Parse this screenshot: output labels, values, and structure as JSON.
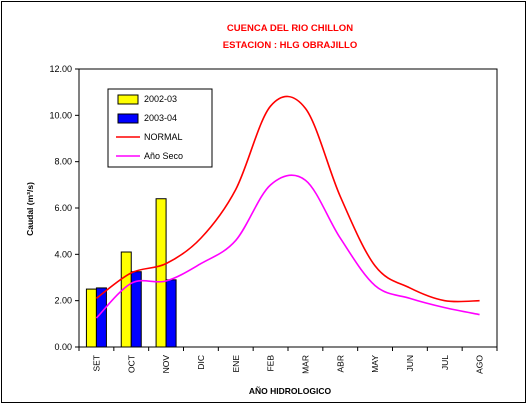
{
  "chart_data": {
    "type": "bar",
    "title": "CUENCA DEL RIO CHILLON",
    "subtitle": "ESTACION : HLG OBRAJILLO",
    "xlabel": "AÑO HIDROLOGICO",
    "ylabel": "Caudal (m³/s)",
    "ylim": [
      0,
      12
    ],
    "yticks": [
      "0.00",
      "2.00",
      "4.00",
      "6.00",
      "8.00",
      "10.00",
      "12.00"
    ],
    "categories": [
      "SET",
      "OCT",
      "NOV",
      "DIC",
      "ENE",
      "FEB",
      "MAR",
      "ABR",
      "MAY",
      "JUN",
      "JUL",
      "AGO"
    ],
    "legend_position": "top-left",
    "grid": false,
    "series": [
      {
        "name": "2002-03",
        "type": "bar",
        "color": "#ffff00",
        "values": [
          2.5,
          4.1,
          6.4,
          null,
          null,
          null,
          null,
          null,
          null,
          null,
          null,
          null
        ]
      },
      {
        "name": "2003-04",
        "type": "bar",
        "color": "#0000ff",
        "values": [
          2.55,
          3.25,
          2.9,
          null,
          null,
          null,
          null,
          null,
          null,
          null,
          null,
          null
        ]
      },
      {
        "name": "NORMAL",
        "type": "line",
        "color": "#ff0000",
        "values": [
          2.1,
          3.2,
          3.6,
          4.7,
          6.8,
          10.4,
          10.3,
          6.5,
          3.5,
          2.55,
          2.0,
          2.0
        ]
      },
      {
        "name": "Año Seco",
        "type": "line",
        "color": "#ff00ff",
        "values": [
          1.25,
          2.75,
          2.85,
          3.6,
          4.6,
          7.0,
          7.2,
          4.7,
          2.65,
          2.1,
          1.7,
          1.4
        ]
      }
    ]
  }
}
